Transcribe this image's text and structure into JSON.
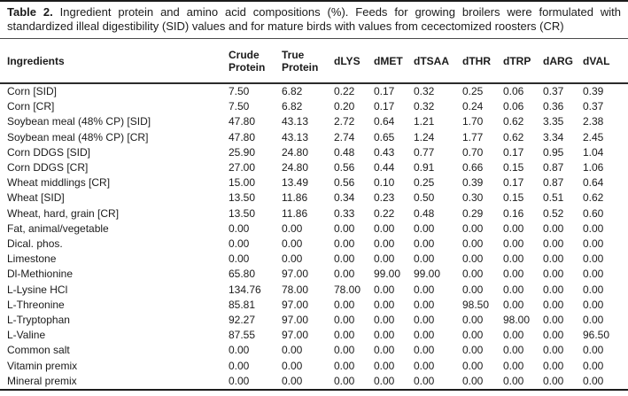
{
  "caption": {
    "label": "Table 2.",
    "text": "Ingredient protein and amino acid compositions (%). Feeds for growing broilers were formulated with standardized illeal digestibility (SID) values and for mature birds with values from cecectomized roosters (CR)"
  },
  "colors": {
    "text": "#1b1b1b",
    "rule": "#1b1b1b",
    "background": "#ffffff"
  },
  "table": {
    "columns": [
      "Ingredients",
      "Crude Protein",
      "True Protein",
      "dLYS",
      "dMET",
      "dTSAA",
      "dTHR",
      "dTRP",
      "dARG",
      "dVAL"
    ],
    "rows": [
      {
        "ingredient": "Corn [SID]",
        "values": [
          "7.50",
          "6.82",
          "0.22",
          "0.17",
          "0.32",
          "0.25",
          "0.06",
          "0.37",
          "0.39"
        ]
      },
      {
        "ingredient": "Corn [CR]",
        "values": [
          "7.50",
          "6.82",
          "0.20",
          "0.17",
          "0.32",
          "0.24",
          "0.06",
          "0.36",
          "0.37"
        ]
      },
      {
        "ingredient": "Soybean meal (48% CP) [SID]",
        "values": [
          "47.80",
          "43.13",
          "2.72",
          "0.64",
          "1.21",
          "1.70",
          "0.62",
          "3.35",
          "2.38"
        ]
      },
      {
        "ingredient": "Soybean meal (48% CP) [CR]",
        "values": [
          "47.80",
          "43.13",
          "2.74",
          "0.65",
          "1.24",
          "1.77",
          "0.62",
          "3.34",
          "2.45"
        ]
      },
      {
        "ingredient": "Corn DDGS [SID]",
        "values": [
          "25.90",
          "24.80",
          "0.48",
          "0.43",
          "0.77",
          "0.70",
          "0.17",
          "0.95",
          "1.04"
        ]
      },
      {
        "ingredient": "Corn DDGS [CR]",
        "values": [
          "27.00",
          "24.80",
          "0.56",
          "0.44",
          "0.91",
          "0.66",
          "0.15",
          "0.87",
          "1.06"
        ]
      },
      {
        "ingredient": "Wheat middlings [CR]",
        "values": [
          "15.00",
          "13.49",
          "0.56",
          "0.10",
          "0.25",
          "0.39",
          "0.17",
          "0.87",
          "0.64"
        ]
      },
      {
        "ingredient": "Wheat [SID]",
        "values": [
          "13.50",
          "11.86",
          "0.34",
          "0.23",
          "0.50",
          "0.30",
          "0.15",
          "0.51",
          "0.62"
        ]
      },
      {
        "ingredient": "Wheat, hard, grain [CR]",
        "values": [
          "13.50",
          "11.86",
          "0.33",
          "0.22",
          "0.48",
          "0.29",
          "0.16",
          "0.52",
          "0.60"
        ]
      },
      {
        "ingredient": "Fat, animal/vegetable",
        "values": [
          "0.00",
          "0.00",
          "0.00",
          "0.00",
          "0.00",
          "0.00",
          "0.00",
          "0.00",
          "0.00"
        ]
      },
      {
        "ingredient": "Dical. phos.",
        "values": [
          "0.00",
          "0.00",
          "0.00",
          "0.00",
          "0.00",
          "0.00",
          "0.00",
          "0.00",
          "0.00"
        ]
      },
      {
        "ingredient": "Limestone",
        "values": [
          "0.00",
          "0.00",
          "0.00",
          "0.00",
          "0.00",
          "0.00",
          "0.00",
          "0.00",
          "0.00"
        ]
      },
      {
        "ingredient": "Dl-Methionine",
        "values": [
          "65.80",
          "97.00",
          "0.00",
          "99.00",
          "99.00",
          "0.00",
          "0.00",
          "0.00",
          "0.00"
        ]
      },
      {
        "ingredient": "L-Lysine HCl",
        "values": [
          "134.76",
          "78.00",
          "78.00",
          "0.00",
          "0.00",
          "0.00",
          "0.00",
          "0.00",
          "0.00"
        ]
      },
      {
        "ingredient": "L-Threonine",
        "values": [
          "85.81",
          "97.00",
          "0.00",
          "0.00",
          "0.00",
          "98.50",
          "0.00",
          "0.00",
          "0.00"
        ]
      },
      {
        "ingredient": "L-Tryptophan",
        "values": [
          "92.27",
          "97.00",
          "0.00",
          "0.00",
          "0.00",
          "0.00",
          "98.00",
          "0.00",
          "0.00"
        ]
      },
      {
        "ingredient": "L-Valine",
        "values": [
          "87.55",
          "97.00",
          "0.00",
          "0.00",
          "0.00",
          "0.00",
          "0.00",
          "0.00",
          "96.50"
        ]
      },
      {
        "ingredient": "Common salt",
        "values": [
          "0.00",
          "0.00",
          "0.00",
          "0.00",
          "0.00",
          "0.00",
          "0.00",
          "0.00",
          "0.00"
        ]
      },
      {
        "ingredient": "Vitamin premix",
        "values": [
          "0.00",
          "0.00",
          "0.00",
          "0.00",
          "0.00",
          "0.00",
          "0.00",
          "0.00",
          "0.00"
        ]
      },
      {
        "ingredient": "Mineral premix",
        "values": [
          "0.00",
          "0.00",
          "0.00",
          "0.00",
          "0.00",
          "0.00",
          "0.00",
          "0.00",
          "0.00"
        ]
      }
    ]
  }
}
